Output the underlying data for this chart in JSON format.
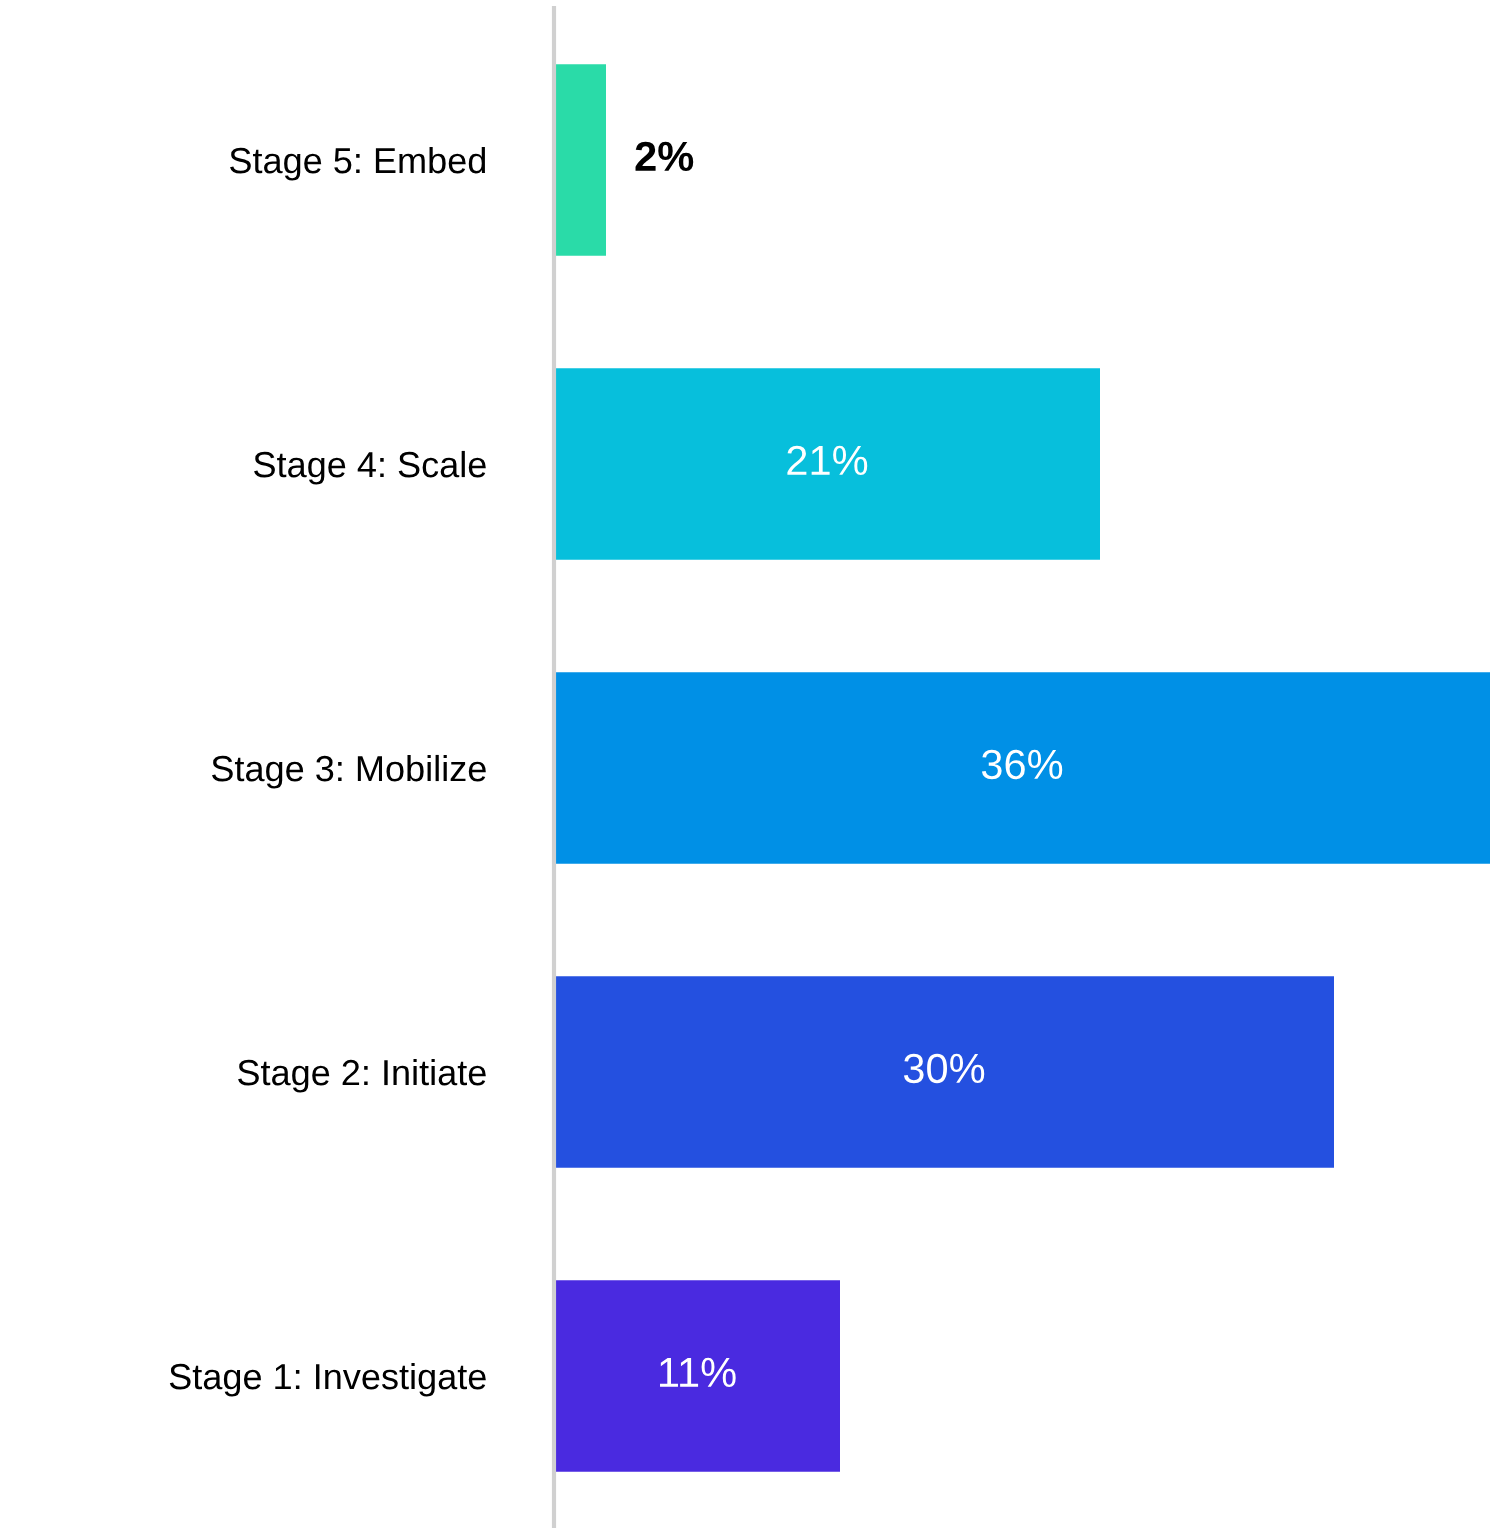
{
  "chart_data": {
    "type": "bar",
    "orientation": "horizontal",
    "categories": [
      "Stage 5: Embed",
      "Stage 4: Scale",
      "Stage 3: Mobilize",
      "Stage 2: Initiate",
      "Stage 1: Investigate"
    ],
    "values": [
      2,
      21,
      36,
      30,
      11
    ],
    "colors": [
      "#2adba8",
      "#07bfdc",
      "#0090e6",
      "#2450e0",
      "#4a2ae0"
    ],
    "value_labels": [
      "2%",
      "21%",
      "36%",
      "30%",
      "11%"
    ],
    "xlim": [
      0,
      36
    ],
    "tick_labels": "y",
    "grid": false
  }
}
